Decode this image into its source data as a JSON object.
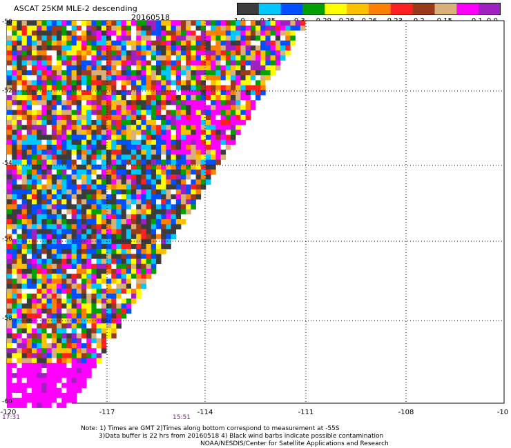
{
  "title": "ASCAT 25KM MLE-2 descending",
  "date": "20160518",
  "colorbar": {
    "colors": [
      "#3c3c3c",
      "#00c8ff",
      "#0050ff",
      "#00a000",
      "#ffff00",
      "#ffc000",
      "#ff8000",
      "#ff2020",
      "#9b3a1a",
      "#d9b07a",
      "#ff00ff",
      "#a020c0"
    ],
    "labels": [
      "-1.0",
      "-0.35",
      "-0.3",
      "-0.29",
      "-0.28",
      "-0.26",
      "-0.23",
      "-0.2",
      "-0.15",
      "-0.1",
      "0.0"
    ]
  },
  "axes": {
    "y_labels": [
      "-50",
      "-52",
      "-54",
      "-56",
      "-58",
      "-60"
    ],
    "x_labels": [
      "-120",
      "-117",
      "-114",
      "-111",
      "-108",
      "-10"
    ]
  },
  "times": [
    "17:31",
    "15:51"
  ],
  "notes": [
    "Note: 1) Times are GMT 2)Times along bottom correspond to measurement at -55S",
    "3)Data buffer is 22 hrs from 20160518 4) Black wind barbs indicate possible contamination",
    "NOAA/NESDIS/Center for Satellite Applications and Research"
  ],
  "swath_palette": [
    "#ff2020",
    "#ff8000",
    "#ffc000",
    "#ffff00",
    "#ff00ff",
    "#a020c0",
    "#9b3a1a",
    "#ffffff",
    "#3c3c3c",
    "#00c8ff",
    "#0050ff",
    "#00a000",
    "#d9b07a"
  ]
}
